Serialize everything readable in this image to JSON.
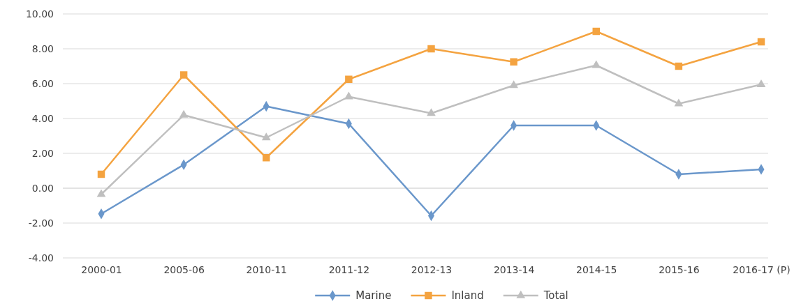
{
  "chart_data": {
    "type": "line",
    "categories": [
      "2000-01",
      "2005-06",
      "2010-11",
      "2011-12",
      "2012-13",
      "2013-14",
      "2014-15",
      "2015-16",
      "2016-17 (P)"
    ],
    "series": [
      {
        "name": "Marine",
        "color": "#6a97cb",
        "marker": "diamond",
        "values": [
          -1.47,
          1.35,
          4.7,
          3.7,
          -1.58,
          3.6,
          3.6,
          0.8,
          1.08
        ]
      },
      {
        "name": "Inland",
        "color": "#f4a340",
        "marker": "square",
        "values": [
          0.8,
          6.5,
          1.75,
          6.25,
          8.0,
          7.25,
          9.0,
          7.0,
          8.4
        ]
      },
      {
        "name": "Total",
        "color": "#bfbfbf",
        "marker": "triangle",
        "values": [
          -0.35,
          4.2,
          2.9,
          5.25,
          4.3,
          5.9,
          7.05,
          4.85,
          5.95
        ]
      }
    ],
    "ylim": [
      -4,
      10
    ],
    "yticks": [
      {
        "value": -4,
        "label": "-4.00"
      },
      {
        "value": -2,
        "label": "-2.00"
      },
      {
        "value": 0,
        "label": "0.00"
      },
      {
        "value": 2,
        "label": "2.00"
      },
      {
        "value": 4,
        "label": "4.00"
      },
      {
        "value": 6,
        "label": "6.00"
      },
      {
        "value": 8,
        "label": "8.00"
      },
      {
        "value": 10,
        "label": "10.00"
      }
    ],
    "grid": "y",
    "legend": "bottom"
  }
}
